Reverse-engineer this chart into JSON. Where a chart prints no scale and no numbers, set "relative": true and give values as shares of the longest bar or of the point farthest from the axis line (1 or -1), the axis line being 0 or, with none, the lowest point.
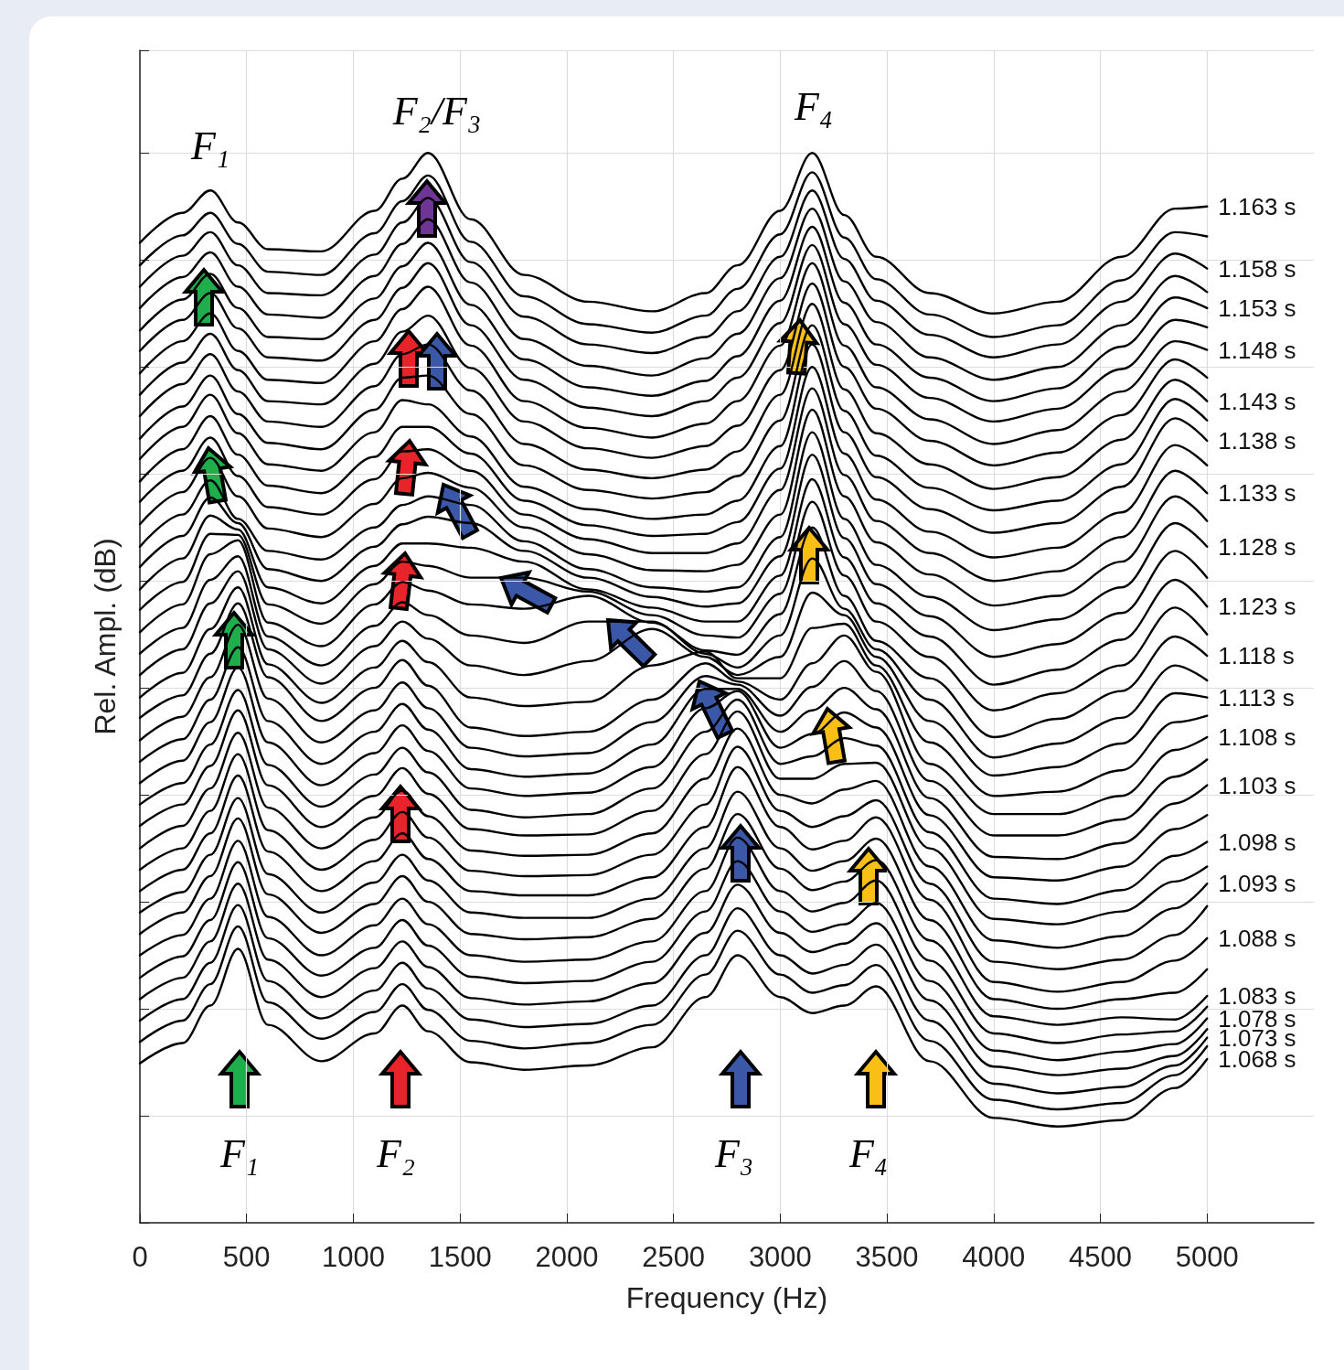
{
  "chart_data": {
    "type": "line",
    "relative": true,
    "xlabel": "Frequency (Hz)",
    "ylabel": "Rel. Ampl. (dB)",
    "xlim": [
      0,
      5500
    ],
    "xticks": [
      0,
      500,
      1000,
      1500,
      2000,
      2500,
      3000,
      3500,
      4000,
      4500,
      5000
    ],
    "grid": true,
    "marker": "none",
    "annotations": [
      "F₁",
      "F₂/F₃",
      "F₄",
      "F₁",
      "F₂",
      "F₃",
      "F₄"
    ],
    "x": [
      0,
      200,
      330,
      460,
      600,
      850,
      1100,
      1230,
      1350,
      1550,
      1800,
      2100,
      2400,
      2650,
      2800,
      3000,
      3150,
      3300,
      3450,
      3700,
      4000,
      4300,
      4600,
      4850,
      5000
    ],
    "series": [
      {
        "name": "1.163 s",
        "color": "#000000",
        "values": [
          0.916,
          0.944,
          0.965,
          0.935,
          0.91,
          0.908,
          0.946,
          0.976,
          1,
          0.938,
          0.886,
          0.861,
          0.852,
          0.869,
          0.895,
          0.946,
          1,
          0.942,
          0.903,
          0.869,
          0.85,
          0.861,
          0.903,
          0.948,
          0.95
        ]
      },
      {
        "color": "#000000",
        "values": [
          0.895,
          0.923,
          0.944,
          0.915,
          0.889,
          0.886,
          0.925,
          0.955,
          0.979,
          0.917,
          0.866,
          0.84,
          0.832,
          0.848,
          0.873,
          0.924,
          0.982,
          0.921,
          0.882,
          0.849,
          0.828,
          0.839,
          0.881,
          0.926,
          0.922
        ]
      },
      {
        "name": "1.158 s",
        "color": "#000000",
        "values": [
          0.875,
          0.904,
          0.926,
          0.895,
          0.869,
          0.867,
          0.905,
          0.935,
          0.958,
          0.898,
          0.847,
          0.821,
          0.813,
          0.828,
          0.852,
          0.903,
          0.965,
          0.901,
          0.862,
          0.83,
          0.809,
          0.821,
          0.861,
          0.906,
          0.892
        ]
      },
      {
        "color": "#000000",
        "values": [
          0.855,
          0.884,
          0.907,
          0.875,
          0.849,
          0.846,
          0.885,
          0.915,
          0.938,
          0.879,
          0.826,
          0.801,
          0.792,
          0.808,
          0.831,
          0.883,
          0.948,
          0.88,
          0.842,
          0.809,
          0.788,
          0.8,
          0.839,
          0.885,
          0.87
        ]
      },
      {
        "name": "1.153 s",
        "color": "#000000",
        "values": [
          0.834,
          0.863,
          0.887,
          0.855,
          0.828,
          0.826,
          0.864,
          0.894,
          0.916,
          0.858,
          0.807,
          0.781,
          0.773,
          0.787,
          0.81,
          0.862,
          0.931,
          0.86,
          0.821,
          0.79,
          0.768,
          0.78,
          0.819,
          0.865,
          0.855
        ]
      },
      {
        "color": "#000000",
        "values": [
          0.815,
          0.844,
          0.869,
          0.836,
          0.809,
          0.806,
          0.844,
          0.874,
          0.897,
          0.839,
          0.788,
          0.762,
          0.754,
          0.768,
          0.79,
          0.841,
          0.914,
          0.84,
          0.802,
          0.771,
          0.749,
          0.761,
          0.798,
          0.844,
          0.837
        ]
      },
      {
        "name": "1.148 s",
        "color": "#000000",
        "values": [
          0.794,
          0.824,
          0.85,
          0.815,
          0.788,
          0.785,
          0.824,
          0.854,
          0.875,
          0.82,
          0.768,
          0.743,
          0.734,
          0.747,
          0.768,
          0.82,
          0.897,
          0.82,
          0.781,
          0.751,
          0.728,
          0.741,
          0.777,
          0.824,
          0.816
        ]
      },
      {
        "color": "#000000",
        "values": [
          0.774,
          0.804,
          0.831,
          0.797,
          0.768,
          0.765,
          0.803,
          0.833,
          0.848,
          0.799,
          0.749,
          0.724,
          0.715,
          0.726,
          0.745,
          0.797,
          0.878,
          0.8,
          0.761,
          0.731,
          0.708,
          0.72,
          0.755,
          0.807,
          0.79
        ]
      },
      {
        "name": "1.143 s",
        "color": "#000000",
        "values": [
          0.754,
          0.784,
          0.812,
          0.777,
          0.749,
          0.744,
          0.782,
          0.812,
          0.821,
          0.778,
          0.728,
          0.704,
          0.696,
          0.704,
          0.721,
          0.774,
          0.859,
          0.779,
          0.738,
          0.709,
          0.686,
          0.697,
          0.732,
          0.788,
          0.768
        ]
      },
      {
        "color": "#000000",
        "values": [
          0.733,
          0.763,
          0.792,
          0.756,
          0.729,
          0.723,
          0.76,
          0.79,
          0.792,
          0.756,
          0.708,
          0.685,
          0.677,
          0.683,
          0.698,
          0.75,
          0.839,
          0.759,
          0.717,
          0.687,
          0.666,
          0.675,
          0.709,
          0.77,
          0.75
        ]
      },
      {
        "name": "1.138 s",
        "color": "#000000",
        "values": [
          0.714,
          0.744,
          0.774,
          0.738,
          0.709,
          0.703,
          0.739,
          0.769,
          0.765,
          0.735,
          0.688,
          0.667,
          0.658,
          0.662,
          0.675,
          0.726,
          0.821,
          0.739,
          0.697,
          0.667,
          0.645,
          0.654,
          0.688,
          0.752,
          0.731
        ]
      },
      {
        "color": "#000000",
        "values": [
          0.693,
          0.723,
          0.754,
          0.718,
          0.689,
          0.682,
          0.716,
          0.744,
          0.744,
          0.719,
          0.675,
          0.652,
          0.642,
          0.644,
          0.655,
          0.705,
          0.8,
          0.719,
          0.676,
          0.646,
          0.622,
          0.631,
          0.664,
          0.727,
          0.708
        ]
      },
      {
        "name": "1.133 s",
        "color": "#000000",
        "values": [
          0.674,
          0.703,
          0.734,
          0.698,
          0.669,
          0.662,
          0.695,
          0.721,
          0.723,
          0.703,
          0.662,
          0.639,
          0.626,
          0.626,
          0.635,
          0.685,
          0.78,
          0.699,
          0.656,
          0.626,
          0.6,
          0.609,
          0.641,
          0.703,
          0.682
        ]
      },
      {
        "color": "#000000",
        "values": [
          0.653,
          0.683,
          0.715,
          0.679,
          0.649,
          0.641,
          0.672,
          0.696,
          0.701,
          0.687,
          0.65,
          0.625,
          0.61,
          0.609,
          0.615,
          0.662,
          0.76,
          0.679,
          0.636,
          0.606,
          0.577,
          0.586,
          0.618,
          0.679,
          0.656
        ]
      },
      {
        "name": "1.128 s",
        "color": "#000000",
        "values": [
          0.632,
          0.662,
          0.694,
          0.658,
          0.628,
          0.62,
          0.65,
          0.671,
          0.679,
          0.671,
          0.637,
          0.611,
          0.594,
          0.59,
          0.594,
          0.641,
          0.739,
          0.658,
          0.615,
          0.585,
          0.554,
          0.564,
          0.594,
          0.654,
          0.632
        ]
      },
      {
        "color": "#000000",
        "values": [
          0.613,
          0.642,
          0.678,
          0.654,
          0.611,
          0.6,
          0.632,
          0.653,
          0.66,
          0.654,
          0.628,
          0.603,
          0.585,
          0.576,
          0.579,
          0.623,
          0.718,
          0.64,
          0.597,
          0.567,
          0.529,
          0.541,
          0.57,
          0.628,
          0.603
        ]
      },
      {
        "name": "1.123 s",
        "color": "#000000",
        "values": [
          0.592,
          0.621,
          0.661,
          0.648,
          0.594,
          0.579,
          0.614,
          0.635,
          0.635,
          0.631,
          0.618,
          0.592,
          0.575,
          0.562,
          0.562,
          0.605,
          0.695,
          0.622,
          0.579,
          0.548,
          0.503,
          0.517,
          0.545,
          0.601,
          0.576
        ]
      },
      {
        "color": "#000000",
        "values": [
          0.573,
          0.599,
          0.644,
          0.643,
          0.578,
          0.56,
          0.597,
          0.618,
          0.614,
          0.603,
          0.603,
          0.59,
          0.568,
          0.549,
          0.547,
          0.588,
          0.674,
          0.605,
          0.562,
          0.529,
          0.479,
          0.495,
          0.521,
          0.575,
          0.55
        ]
      },
      {
        "name": "1.118 s",
        "color": "#000000",
        "values": [
          0.552,
          0.578,
          0.625,
          0.638,
          0.561,
          0.539,
          0.578,
          0.599,
          0.591,
          0.578,
          0.574,
          0.586,
          0.561,
          0.535,
          0.531,
          0.569,
          0.65,
          0.586,
          0.544,
          0.509,
          0.454,
          0.471,
          0.497,
          0.548,
          0.53
        ]
      },
      {
        "color": "#000000",
        "values": [
          0.532,
          0.556,
          0.601,
          0.623,
          0.548,
          0.521,
          0.558,
          0.58,
          0.568,
          0.549,
          0.542,
          0.562,
          0.562,
          0.532,
          0.519,
          0.549,
          0.621,
          0.574,
          0.536,
          0.489,
          0.435,
          0.448,
          0.472,
          0.521,
          0.507
        ]
      },
      {
        "name": "1.113 s",
        "color": "#000000",
        "values": [
          0.512,
          0.536,
          0.579,
          0.609,
          0.536,
          0.504,
          0.539,
          0.562,
          0.546,
          0.521,
          0.512,
          0.525,
          0.555,
          0.529,
          0.512,
          0.529,
          0.589,
          0.568,
          0.529,
          0.469,
          0.418,
          0.426,
          0.448,
          0.495,
          0.491
        ]
      },
      {
        "color": "#000000",
        "values": [
          0.491,
          0.514,
          0.555,
          0.594,
          0.522,
          0.486,
          0.519,
          0.544,
          0.524,
          0.491,
          0.483,
          0.487,
          0.521,
          0.534,
          0.509,
          0.509,
          0.556,
          0.56,
          0.521,
          0.449,
          0.399,
          0.403,
          0.423,
          0.468,
          0.474
        ]
      },
      {
        "name": "1.108 s",
        "color": "#000000",
        "values": [
          0.472,
          0.493,
          0.532,
          0.579,
          0.51,
          0.469,
          0.5,
          0.526,
          0.502,
          0.463,
          0.455,
          0.459,
          0.489,
          0.523,
          0.506,
          0.489,
          0.523,
          0.549,
          0.515,
          0.429,
          0.382,
          0.382,
          0.399,
          0.442,
          0.454
        ]
      },
      {
        "color": "#000000",
        "values": [
          0.451,
          0.473,
          0.51,
          0.559,
          0.49,
          0.449,
          0.479,
          0.505,
          0.481,
          0.444,
          0.436,
          0.439,
          0.468,
          0.511,
          0.503,
          0.474,
          0.501,
          0.525,
          0.497,
          0.413,
          0.362,
          0.362,
          0.377,
          0.417,
          0.433
        ]
      },
      {
        "name": "1.103 s",
        "color": "#000000",
        "values": [
          0.431,
          0.452,
          0.489,
          0.538,
          0.469,
          0.429,
          0.459,
          0.485,
          0.461,
          0.424,
          0.417,
          0.42,
          0.447,
          0.499,
          0.499,
          0.459,
          0.479,
          0.5,
          0.48,
          0.397,
          0.342,
          0.34,
          0.355,
          0.392,
          0.409
        ]
      },
      {
        "color": "#000000",
        "values": [
          0.411,
          0.432,
          0.468,
          0.519,
          0.449,
          0.409,
          0.439,
          0.465,
          0.441,
          0.406,
          0.399,
          0.402,
          0.426,
          0.481,
          0.497,
          0.444,
          0.457,
          0.477,
          0.463,
          0.381,
          0.323,
          0.32,
          0.333,
          0.368,
          0.381
        ]
      },
      {
        "name": "1.098 s",
        "color": "#000000",
        "values": [
          0.391,
          0.411,
          0.447,
          0.498,
          0.428,
          0.389,
          0.419,
          0.444,
          0.421,
          0.386,
          0.379,
          0.382,
          0.406,
          0.459,
          0.489,
          0.429,
          0.436,
          0.453,
          0.446,
          0.365,
          0.303,
          0.298,
          0.311,
          0.343,
          0.356
        ]
      },
      {
        "color": "#000000",
        "values": [
          0.371,
          0.391,
          0.427,
          0.479,
          0.409,
          0.37,
          0.399,
          0.425,
          0.401,
          0.368,
          0.362,
          0.363,
          0.385,
          0.438,
          0.478,
          0.415,
          0.415,
          0.429,
          0.43,
          0.35,
          0.284,
          0.279,
          0.291,
          0.319,
          0.333
        ]
      },
      {
        "name": "1.093 s",
        "color": "#000000",
        "values": [
          0.35,
          0.371,
          0.406,
          0.458,
          0.388,
          0.35,
          0.379,
          0.404,
          0.38,
          0.348,
          0.343,
          0.344,
          0.364,
          0.415,
          0.462,
          0.4,
          0.392,
          0.405,
          0.413,
          0.333,
          0.264,
          0.257,
          0.268,
          0.294,
          0.317
        ]
      },
      {
        "color": "#000000",
        "values": [
          0.33,
          0.35,
          0.385,
          0.438,
          0.367,
          0.33,
          0.358,
          0.384,
          0.36,
          0.329,
          0.324,
          0.325,
          0.344,
          0.391,
          0.445,
          0.385,
          0.37,
          0.38,
          0.395,
          0.317,
          0.244,
          0.237,
          0.246,
          0.269,
          0.296
        ]
      },
      {
        "name": "1.088 s",
        "color": "#000000",
        "values": [
          0.31,
          0.33,
          0.364,
          0.418,
          0.347,
          0.31,
          0.338,
          0.364,
          0.34,
          0.31,
          0.306,
          0.306,
          0.323,
          0.37,
          0.426,
          0.37,
          0.349,
          0.357,
          0.379,
          0.302,
          0.225,
          0.216,
          0.225,
          0.245,
          0.266
        ]
      },
      {
        "color": "#000000",
        "values": [
          0.29,
          0.309,
          0.344,
          0.397,
          0.326,
          0.29,
          0.318,
          0.344,
          0.32,
          0.29,
          0.285,
          0.285,
          0.303,
          0.35,
          0.403,
          0.35,
          0.329,
          0.338,
          0.359,
          0.283,
          0.209,
          0.2,
          0.209,
          0.215,
          0.237
        ]
      },
      {
        "name": "1.083 s",
        "color": "#000000",
        "values": [
          0.27,
          0.29,
          0.324,
          0.378,
          0.307,
          0.271,
          0.298,
          0.324,
          0.3,
          0.27,
          0.265,
          0.267,
          0.284,
          0.331,
          0.382,
          0.331,
          0.311,
          0.319,
          0.339,
          0.264,
          0.193,
          0.185,
          0.192,
          0.19,
          0.212
        ]
      },
      {
        "color": "#000000",
        "values": [
          0.25,
          0.269,
          0.303,
          0.357,
          0.286,
          0.25,
          0.278,
          0.303,
          0.279,
          0.25,
          0.244,
          0.246,
          0.263,
          0.31,
          0.36,
          0.31,
          0.291,
          0.299,
          0.32,
          0.245,
          0.177,
          0.168,
          0.176,
          0.179,
          0.202
        ]
      },
      {
        "name": "1.078 s",
        "color": "#000000",
        "values": [
          0.229,
          0.249,
          0.283,
          0.337,
          0.266,
          0.231,
          0.257,
          0.283,
          0.259,
          0.23,
          0.224,
          0.226,
          0.244,
          0.291,
          0.338,
          0.291,
          0.272,
          0.279,
          0.299,
          0.226,
          0.161,
          0.152,
          0.16,
          0.167,
          0.191
        ]
      },
      {
        "color": "#000000",
        "values": [
          0.209,
          0.229,
          0.263,
          0.317,
          0.246,
          0.211,
          0.238,
          0.263,
          0.239,
          0.21,
          0.204,
          0.207,
          0.224,
          0.271,
          0.316,
          0.271,
          0.253,
          0.261,
          0.28,
          0.208,
          0.146,
          0.138,
          0.144,
          0.156,
          0.181
        ]
      },
      {
        "name": "1.073 s",
        "color": "#000000",
        "values": [
          0.189,
          0.209,
          0.243,
          0.297,
          0.226,
          0.191,
          0.217,
          0.243,
          0.219,
          0.19,
          0.183,
          0.186,
          0.203,
          0.25,
          0.294,
          0.25,
          0.233,
          0.241,
          0.26,
          0.189,
          0.13,
          0.121,
          0.127,
          0.147,
          0.173
        ]
      },
      {
        "color": "#000000",
        "values": [
          0.169,
          0.189,
          0.223,
          0.277,
          0.206,
          0.172,
          0.197,
          0.223,
          0.199,
          0.17,
          0.163,
          0.168,
          0.185,
          0.232,
          0.273,
          0.232,
          0.215,
          0.222,
          0.241,
          0.17,
          0.115,
          0.106,
          0.112,
          0.138,
          0.165
        ]
      },
      {
        "name": "1.068 s",
        "color": "#000000",
        "values": [
          0.149,
          0.168,
          0.203,
          0.256,
          0.185,
          0.151,
          0.177,
          0.203,
          0.179,
          0.15,
          0.143,
          0.147,
          0.164,
          0.211,
          0.25,
          0.211,
          0.196,
          0.203,
          0.221,
          0.151,
          0.098,
          0.09,
          0.096,
          0.126,
          0.153
        ]
      }
    ]
  }
}
